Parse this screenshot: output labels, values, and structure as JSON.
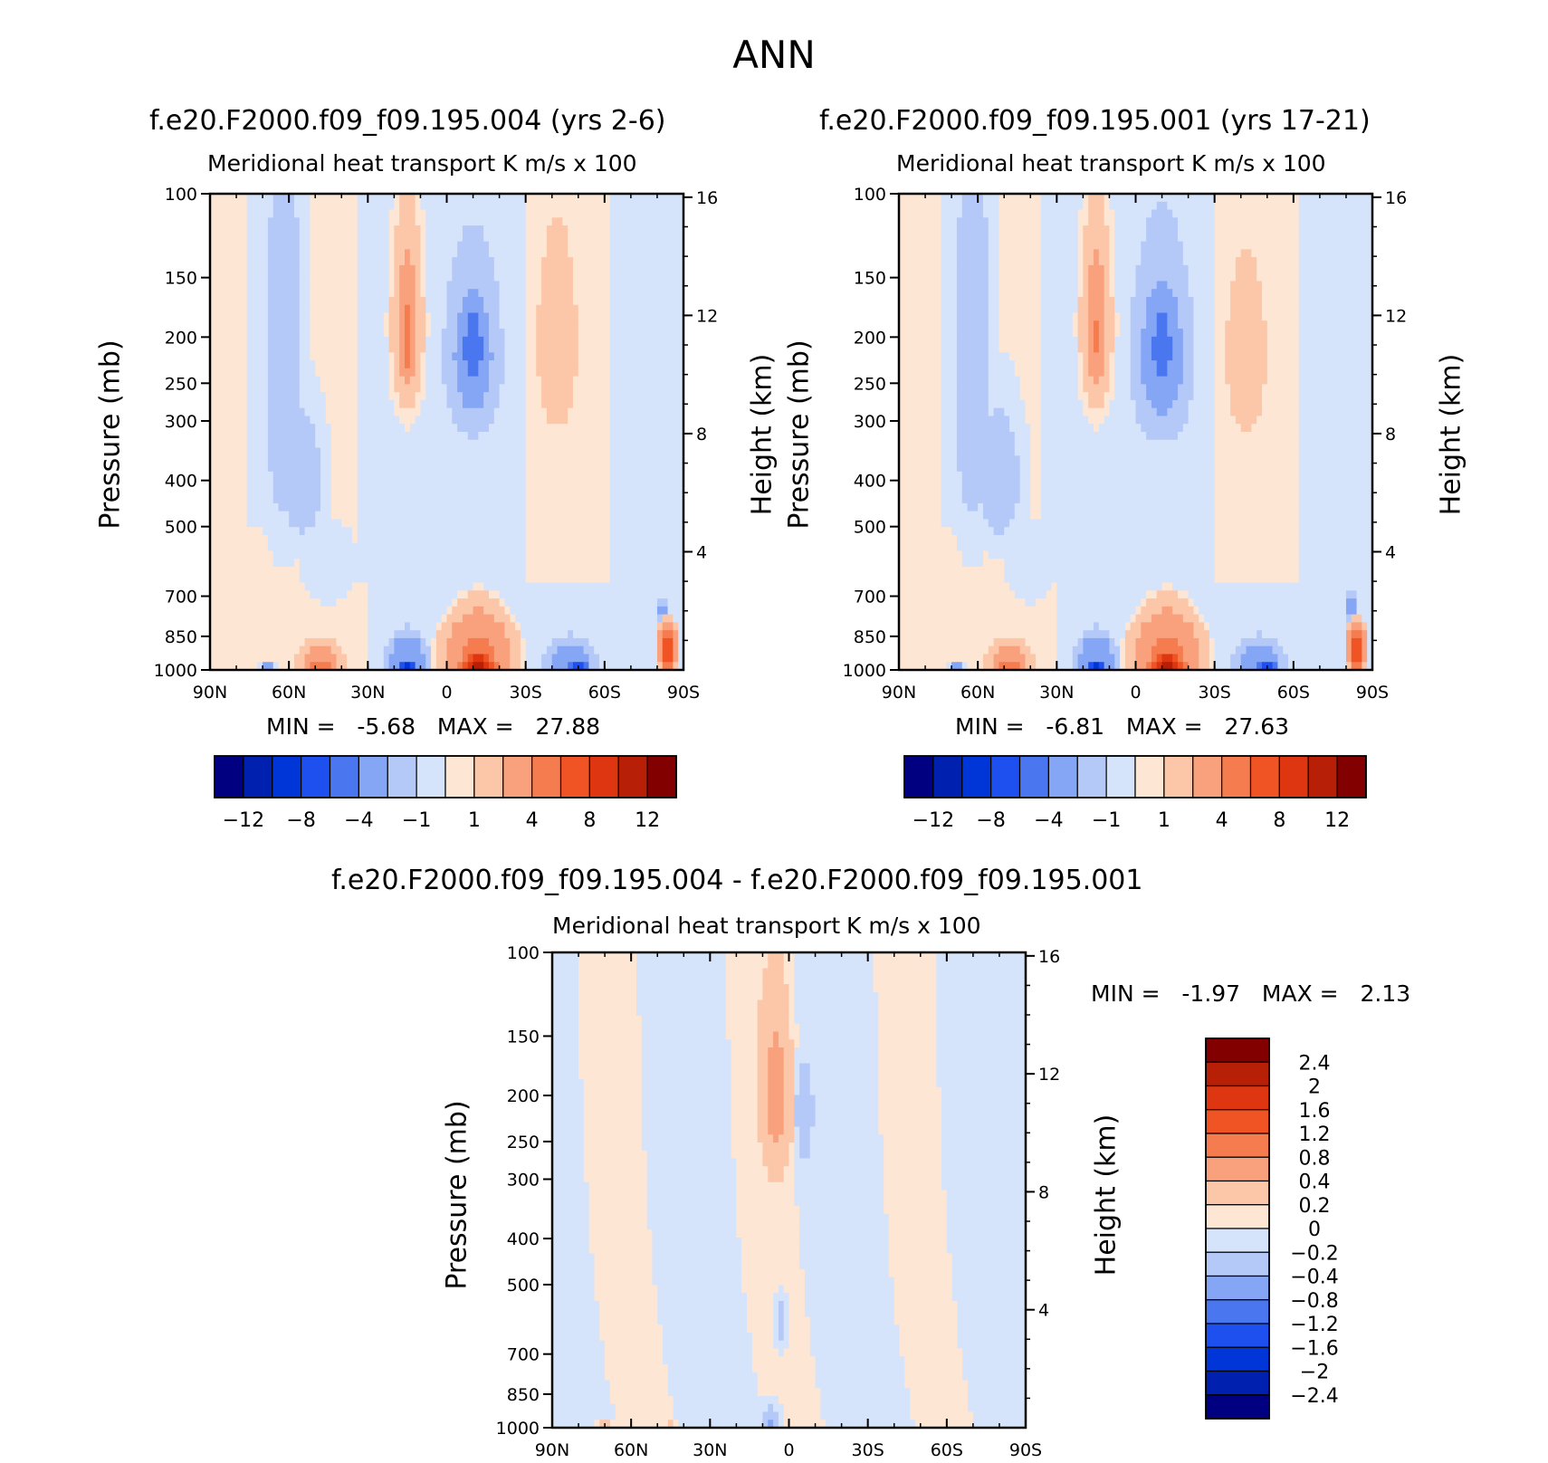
{
  "figure_title": "ANN",
  "chart_data": [
    {
      "type": "heatmap",
      "title": "f.e20.F2000.f09_f09.195.004 (yrs 2-6)",
      "subtitle_left": "Meridional heat transport",
      "subtitle_right": "K m/s x 100",
      "ylabel": "Pressure (mb)",
      "ylabel_right": "Height (km)",
      "x_ticks": [
        "90N",
        "60N",
        "30N",
        "0",
        "30S",
        "60S",
        "90S"
      ],
      "y_ticks": [
        100,
        150,
        200,
        250,
        300,
        400,
        500,
        700,
        850,
        1000
      ],
      "y_ticks_right": [
        16,
        12,
        8,
        4
      ],
      "stats": {
        "min_label": "MIN =",
        "min": "-5.68",
        "max_label": "MAX =",
        "max": "27.88"
      },
      "features": [
        {
          "lat": 62,
          "p": 250,
          "v": -1.5,
          "w": 10,
          "h": 350
        },
        {
          "lat": 55,
          "p": 400,
          "v": -1.5,
          "w": 11,
          "h": 180
        },
        {
          "lat": 45,
          "p": 600,
          "v": -1,
          "w": 14,
          "h": 150
        },
        {
          "lat": 15,
          "p": 190,
          "v": 3,
          "w": 6,
          "h": 90
        },
        {
          "lat": 15,
          "p": 200,
          "v": 6,
          "w": 3,
          "h": 45
        },
        {
          "lat": -10,
          "p": 220,
          "v": -3,
          "w": 11,
          "h": 100
        },
        {
          "lat": -10,
          "p": 210,
          "v": -6,
          "w": 5,
          "h": 50
        },
        {
          "lat": -42,
          "p": 210,
          "v": 2,
          "w": 9,
          "h": 120
        },
        {
          "lat": -35,
          "p": 400,
          "v": 0.8,
          "w": 8,
          "h": 200
        },
        {
          "lat": -5,
          "p": 550,
          "v": -0.8,
          "w": 12,
          "h": 200
        },
        {
          "lat": 48,
          "p": 960,
          "v": 3,
          "w": 9,
          "h": 110
        },
        {
          "lat": 48,
          "p": 990,
          "v": 6,
          "w": 5,
          "h": 50
        },
        {
          "lat": 15,
          "p": 960,
          "v": -4,
          "w": 8,
          "h": 130
        },
        {
          "lat": 15,
          "p": 990,
          "v": -9,
          "w": 4,
          "h": 50
        },
        {
          "lat": -12,
          "p": 940,
          "v": 5,
          "w": 13,
          "h": 200
        },
        {
          "lat": -12,
          "p": 990,
          "v": 12,
          "w": 7,
          "h": 80
        },
        {
          "lat": -47,
          "p": 970,
          "v": -4,
          "w": 9,
          "h": 110
        },
        {
          "lat": -50,
          "p": 995,
          "v": -8,
          "w": 4,
          "h": 40
        },
        {
          "lat": -84,
          "p": 900,
          "v": 9,
          "w": 3,
          "h": 100
        },
        {
          "lat": -82,
          "p": 750,
          "v": -3,
          "w": 2,
          "h": 60
        },
        {
          "lat": 68,
          "p": 995,
          "v": -4,
          "w": 3,
          "h": 20
        }
      ]
    },
    {
      "type": "heatmap",
      "title": "f.e20.F2000.f09_f09.195.001 (yrs 17-21)",
      "subtitle_left": "Meridional heat transport",
      "subtitle_right": "K m/s x 100",
      "ylabel": "Pressure (mb)",
      "ylabel_right": "Height (km)",
      "x_ticks": [
        "90N",
        "60N",
        "30N",
        "0",
        "30S",
        "60S",
        "90S"
      ],
      "y_ticks": [
        100,
        150,
        200,
        250,
        300,
        400,
        500,
        700,
        850,
        1000
      ],
      "y_ticks_right": [
        16,
        12,
        8,
        4
      ],
      "stats": {
        "min_label": "MIN =",
        "min": "-6.81",
        "max_label": "MAX =",
        "max": "27.63"
      },
      "features": [
        {
          "lat": 62,
          "p": 250,
          "v": -1.5,
          "w": 10,
          "h": 350
        },
        {
          "lat": 52,
          "p": 400,
          "v": -1.5,
          "w": 12,
          "h": 180
        },
        {
          "lat": 40,
          "p": 600,
          "v": -1,
          "w": 12,
          "h": 150
        },
        {
          "lat": 15,
          "p": 190,
          "v": 3,
          "w": 6,
          "h": 90
        },
        {
          "lat": 15,
          "p": 200,
          "v": 5,
          "w": 2.5,
          "h": 35
        },
        {
          "lat": -10,
          "p": 220,
          "v": -3,
          "w": 12,
          "h": 110
        },
        {
          "lat": -10,
          "p": 210,
          "v": -6,
          "w": 5,
          "h": 50
        },
        {
          "lat": -42,
          "p": 220,
          "v": 2,
          "w": 9,
          "h": 110
        },
        {
          "lat": -35,
          "p": 400,
          "v": 0.8,
          "w": 8,
          "h": 200
        },
        {
          "lat": -5,
          "p": 550,
          "v": -0.8,
          "w": 12,
          "h": 200
        },
        {
          "lat": 48,
          "p": 960,
          "v": 3,
          "w": 9,
          "h": 110
        },
        {
          "lat": 48,
          "p": 990,
          "v": 6,
          "w": 5,
          "h": 50
        },
        {
          "lat": 15,
          "p": 960,
          "v": -4,
          "w": 8,
          "h": 130
        },
        {
          "lat": 15,
          "p": 990,
          "v": -9,
          "w": 4,
          "h": 50
        },
        {
          "lat": -12,
          "p": 940,
          "v": 5,
          "w": 13,
          "h": 200
        },
        {
          "lat": -12,
          "p": 990,
          "v": 12,
          "w": 7,
          "h": 80
        },
        {
          "lat": -47,
          "p": 970,
          "v": -4,
          "w": 9,
          "h": 110
        },
        {
          "lat": -50,
          "p": 995,
          "v": -8,
          "w": 4,
          "h": 40
        },
        {
          "lat": -84,
          "p": 900,
          "v": 9,
          "w": 3,
          "h": 100
        },
        {
          "lat": -82,
          "p": 740,
          "v": -3,
          "w": 2,
          "h": 60
        },
        {
          "lat": 68,
          "p": 995,
          "v": -4,
          "w": 3,
          "h": 20
        }
      ]
    },
    {
      "type": "heatmap",
      "title": "f.e20.F2000.f09_f09.195.004 - f.e20.F2000.f09_f09.195.001",
      "subtitle_left": "Meridional heat transport",
      "subtitle_right": "K m/s x 100",
      "ylabel": "Pressure (mb)",
      "ylabel_right": "Height (km)",
      "x_ticks": [
        "90N",
        "60N",
        "30N",
        "0",
        "30S",
        "60S",
        "90S"
      ],
      "y_ticks": [
        100,
        150,
        200,
        250,
        300,
        400,
        500,
        700,
        850,
        1000
      ],
      "y_ticks_right": [
        16,
        12,
        8,
        4
      ],
      "stats": {
        "min_label": "MIN =",
        "min": "-1.97",
        "max_label": "MAX =",
        "max": "2.13"
      },
      "features": [
        {
          "lat": 5,
          "p": 200,
          "v": 0.5,
          "w": 7,
          "h": 110
        },
        {
          "lat": 8,
          "p": 190,
          "v": 0.25,
          "w": 10,
          "h": 180
        },
        {
          "lat": -6,
          "p": 220,
          "v": -0.3,
          "w": 5,
          "h": 80
        },
        {
          "lat": 35,
          "p": 450,
          "v": 0.1,
          "w": 8,
          "h": 500
        },
        {
          "lat": -28,
          "p": 450,
          "v": 0.1,
          "w": 9,
          "h": 550
        },
        {
          "lat": -60,
          "p": 500,
          "v": 0.1,
          "w": 8,
          "h": 500
        },
        {
          "lat": 72,
          "p": 500,
          "v": 0.1,
          "w": 5,
          "h": 500
        },
        {
          "lat": 3,
          "p": 600,
          "v": -0.3,
          "w": 3,
          "h": 100
        },
        {
          "lat": 7,
          "p": 960,
          "v": -0.3,
          "w": 5,
          "h": 100
        },
        {
          "lat": 7,
          "p": 980,
          "v": -0.6,
          "w": 2.5,
          "h": 50
        },
        {
          "lat": 45,
          "p": 990,
          "v": 0.3,
          "w": 3,
          "h": 30
        },
        {
          "lat": 70,
          "p": 995,
          "v": 0.5,
          "w": 5,
          "h": 15
        }
      ]
    }
  ],
  "colorbar_top": {
    "colors": [
      "#000080",
      "#0020b0",
      "#0036d8",
      "#1e50f0",
      "#4a76f0",
      "#85a6f5",
      "#b4c9f8",
      "#d6e4fb",
      "#fde6d4",
      "#fcc6a8",
      "#f9a07c",
      "#f47c4e",
      "#f05424",
      "#dd3610",
      "#b71f06",
      "#820000"
    ],
    "labels": [
      "-12",
      "-8",
      "-4",
      "-1",
      "1",
      "4",
      "8",
      "12"
    ]
  },
  "colorbar_diff": {
    "colors": [
      "#000080",
      "#0020b0",
      "#0036d8",
      "#1e50f0",
      "#4a76f0",
      "#85a6f5",
      "#b4c9f8",
      "#d6e4fb",
      "#fde6d4",
      "#fcc6a8",
      "#f9a07c",
      "#f47c4e",
      "#f05424",
      "#dd3610",
      "#b71f06",
      "#820000"
    ],
    "labels": [
      "2.4",
      "2",
      "1.6",
      "1.2",
      "0.8",
      "0.4",
      "0.2",
      "0",
      "-0.2",
      "-0.4",
      "-0.8",
      "-1.2",
      "-1.6",
      "-2",
      "-2.4"
    ]
  }
}
